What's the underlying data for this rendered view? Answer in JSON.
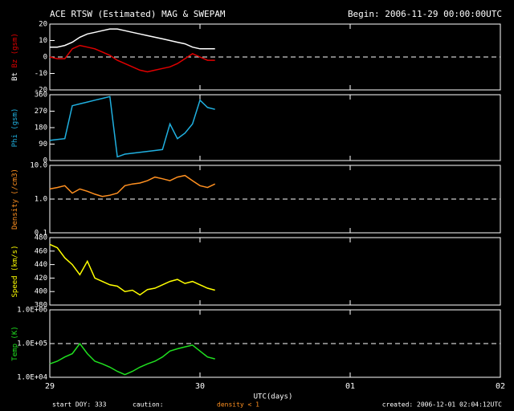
{
  "header": {
    "title": "ACE RTSW (Estimated) MAG & SWEPAM",
    "subtitle": "Begin: 2006-11-29 00:00:00UTC"
  },
  "x_axis": {
    "label": "UTC(days)",
    "xlim": [
      0,
      3
    ],
    "xticks": [
      {
        "value": 0,
        "label": "29"
      },
      {
        "value": 1,
        "label": "30"
      },
      {
        "value": 2,
        "label": "01"
      },
      {
        "value": 3,
        "label": "02"
      }
    ]
  },
  "footer": {
    "start": "start DOY: 333",
    "caution": "caution:",
    "caution_note": "density < 1",
    "created": "created: 2006-12-01 02:04:12UTC"
  },
  "chart_data": [
    {
      "type": "line",
      "ylabel": "(gsm)",
      "ylim": [
        -20,
        20
      ],
      "yticks": [
        -20,
        -10,
        0,
        10,
        20
      ],
      "ref_line": 0,
      "x": [
        0,
        0.05,
        0.1,
        0.15,
        0.2,
        0.25,
        0.3,
        0.35,
        0.4,
        0.45,
        0.5,
        0.55,
        0.6,
        0.65,
        0.7,
        0.75,
        0.8,
        0.85,
        0.9,
        0.95,
        1.0,
        1.05,
        1.1
      ],
      "series": [
        {
          "name": "Bt",
          "color": "#ffffff",
          "values": [
            6,
            6,
            7,
            9,
            12,
            14,
            15,
            16,
            17,
            17,
            16,
            15,
            14,
            13,
            12,
            11,
            10,
            9,
            8,
            6,
            5,
            5,
            5
          ]
        },
        {
          "name": "Bz",
          "color": "#e00000",
          "values": [
            0,
            -1,
            -1,
            5,
            7,
            6,
            5,
            3,
            1,
            -2,
            -4,
            -6,
            -8,
            -9,
            -8,
            -7,
            -6,
            -4,
            -1,
            2,
            0,
            -2,
            -2
          ]
        }
      ]
    },
    {
      "type": "line",
      "ylabel": "(gsm)",
      "ylim": [
        0,
        360
      ],
      "yticks": [
        0,
        90,
        180,
        270,
        360
      ],
      "x": [
        0,
        0.05,
        0.1,
        0.15,
        0.2,
        0.25,
        0.3,
        0.35,
        0.4,
        0.45,
        0.5,
        0.55,
        0.6,
        0.65,
        0.7,
        0.75,
        0.8,
        0.85,
        0.9,
        0.95,
        1.0,
        1.05,
        1.1
      ],
      "series": [
        {
          "name": "Phi",
          "color": "#20b0e0",
          "values": [
            110,
            115,
            120,
            300,
            310,
            320,
            330,
            340,
            350,
            20,
            35,
            40,
            45,
            50,
            55,
            60,
            200,
            120,
            150,
            200,
            330,
            290,
            280
          ]
        }
      ]
    },
    {
      "type": "line",
      "log_scale": true,
      "ylabel": "(/cm3)",
      "ylim": [
        0.1,
        10
      ],
      "yticks": [
        0.1,
        {
          "value": 1,
          "label": "1.0"
        },
        {
          "value": 10,
          "label": "10.0"
        }
      ],
      "ref_line": 1,
      "x": [
        0,
        0.05,
        0.1,
        0.15,
        0.2,
        0.25,
        0.3,
        0.35,
        0.4,
        0.45,
        0.5,
        0.55,
        0.6,
        0.65,
        0.7,
        0.75,
        0.8,
        0.85,
        0.9,
        0.95,
        1.0,
        1.05,
        1.1
      ],
      "series": [
        {
          "name": "Density",
          "color": "#ff9020",
          "values": [
            2,
            2.2,
            2.5,
            1.5,
            2,
            1.7,
            1.4,
            1.2,
            1.3,
            1.5,
            2.5,
            2.8,
            3,
            3.5,
            4.5,
            4,
            3.5,
            4.5,
            5,
            3.5,
            2.5,
            2.2,
            2.8
          ]
        }
      ]
    },
    {
      "type": "line",
      "ylabel": "(km/s)",
      "ylim": [
        380,
        480
      ],
      "yticks": [
        380,
        400,
        420,
        440,
        460,
        480
      ],
      "x": [
        0,
        0.05,
        0.1,
        0.15,
        0.2,
        0.25,
        0.3,
        0.35,
        0.4,
        0.45,
        0.5,
        0.55,
        0.6,
        0.65,
        0.7,
        0.75,
        0.8,
        0.85,
        0.9,
        0.95,
        1.0,
        1.05,
        1.1
      ],
      "series": [
        {
          "name": "Speed",
          "color": "#ffff00",
          "values": [
            470,
            465,
            450,
            440,
            425,
            445,
            420,
            415,
            410,
            408,
            400,
            402,
            395,
            403,
            405,
            410,
            415,
            418,
            412,
            415,
            410,
            405,
            402
          ]
        }
      ]
    },
    {
      "type": "line",
      "log_scale": true,
      "ylabel": "(K)",
      "ylim": [
        10000,
        1000000
      ],
      "yticks": [
        {
          "value": 10000,
          "label": "1.0E+04"
        },
        {
          "value": 100000,
          "label": "1.0E+05"
        },
        {
          "value": 1000000,
          "label": "1.0E+06"
        }
      ],
      "ref_line": 100000,
      "x": [
        0,
        0.05,
        0.1,
        0.15,
        0.2,
        0.25,
        0.3,
        0.35,
        0.4,
        0.45,
        0.5,
        0.55,
        0.6,
        0.65,
        0.7,
        0.75,
        0.8,
        0.85,
        0.9,
        0.95,
        1.0,
        1.05,
        1.1
      ],
      "series": [
        {
          "name": "Temp",
          "color": "#20e020",
          "values": [
            25000,
            30000,
            40000,
            50000,
            100000,
            50000,
            30000,
            25000,
            20000,
            15000,
            12000,
            15000,
            20000,
            25000,
            30000,
            40000,
            60000,
            70000,
            80000,
            90000,
            60000,
            40000,
            35000
          ]
        }
      ]
    }
  ]
}
